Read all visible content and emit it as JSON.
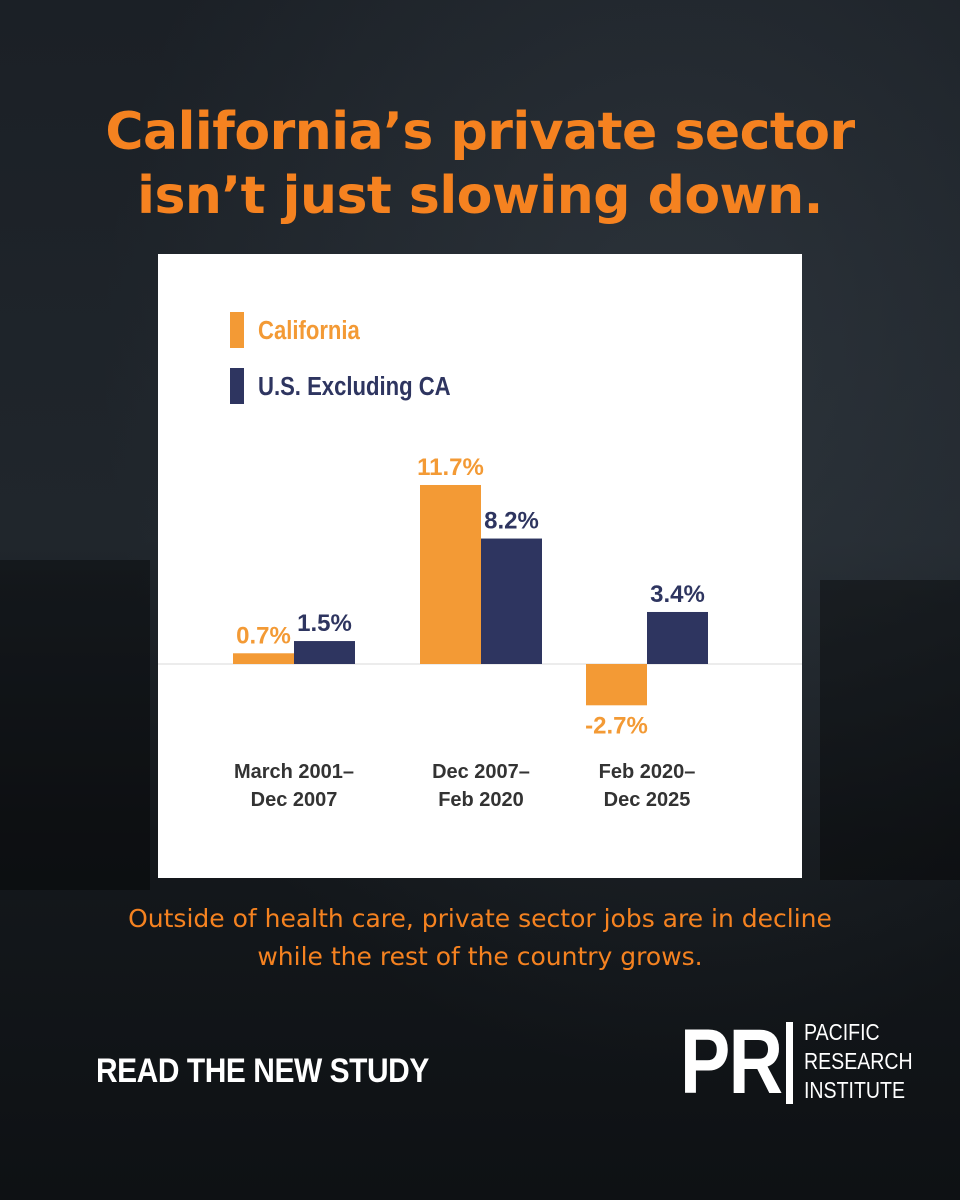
{
  "headline": {
    "line1": "California’s private sector",
    "line2": "isn’t just slowing down."
  },
  "chart_data": {
    "type": "bar",
    "categories": [
      [
        "March 2001–",
        "Dec 2007"
      ],
      [
        "Dec 2007–",
        "Feb 2020"
      ],
      [
        "Feb 2020–",
        "Dec 2025"
      ]
    ],
    "series": [
      {
        "name": "California",
        "color": "#f39a35",
        "values": [
          0.7,
          11.7,
          -2.7
        ],
        "labels": [
          "0.7%",
          "11.7%",
          "-2.7%"
        ]
      },
      {
        "name": "U.S. Excluding CA",
        "color": "#2e3560",
        "values": [
          1.5,
          8.2,
          3.4
        ],
        "labels": [
          "1.5%",
          "8.2%",
          "3.4%"
        ]
      }
    ],
    "legend": "top-left",
    "ylim": [
      -3,
      12
    ],
    "grid": false
  },
  "caption": {
    "line1": "Outside of health care, private sector jobs are in decline",
    "line2": "while the rest of the country grows."
  },
  "cta": {
    "label": "READ THE NEW STUDY"
  },
  "logo": {
    "mark": "PR",
    "line1": "PACIFIC",
    "line2": "RESEARCH",
    "line3": "INSTITUTE"
  },
  "colors": {
    "accent": "#f58220",
    "background": "#1b2026"
  }
}
